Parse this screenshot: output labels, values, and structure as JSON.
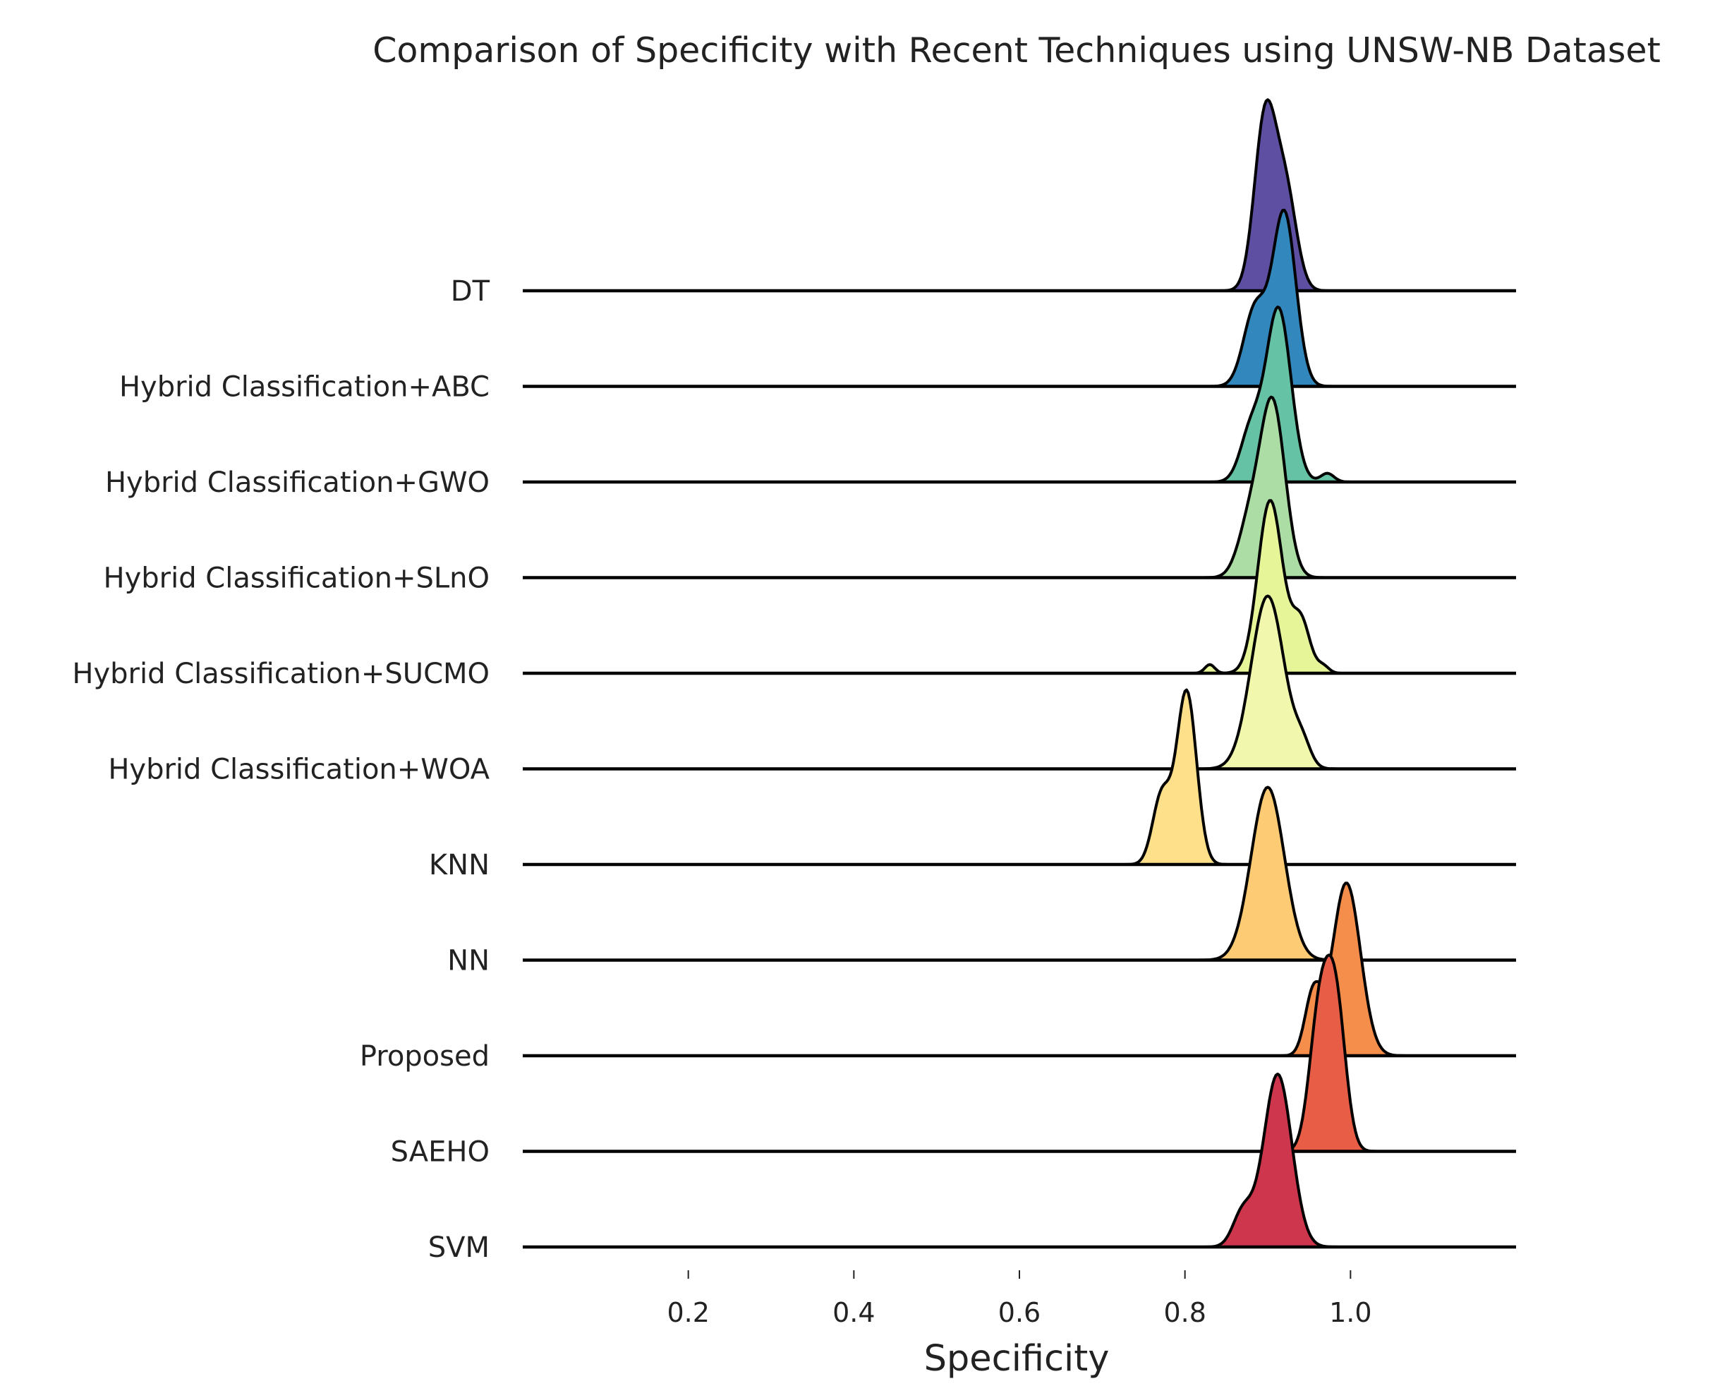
{
  "chart_data": {
    "type": "ridgeline",
    "title": "Comparison of Specificity with Recent Techniques using UNSW-NB Dataset",
    "xlabel": "Specificity",
    "ylabel": "",
    "xlim": [
      0.0,
      1.2
    ],
    "xticks": [
      0.2,
      0.4,
      0.6,
      0.8,
      1.0
    ],
    "xtick_labels": [
      "0.2",
      "0.4",
      "0.6",
      "0.8",
      "1.0"
    ],
    "grid": false,
    "series": [
      {
        "name": "DT",
        "color": "#5e4fa2",
        "peaks": [
          {
            "mean": 0.897,
            "sd": 0.013,
            "height": 1.0
          },
          {
            "mean": 0.922,
            "sd": 0.013,
            "height": 0.55
          }
        ]
      },
      {
        "name": "Hybrid Classification+ABC",
        "color": "#3288bd",
        "peaks": [
          {
            "mean": 0.92,
            "sd": 0.014,
            "height": 1.0
          },
          {
            "mean": 0.885,
            "sd": 0.014,
            "height": 0.45
          }
        ]
      },
      {
        "name": "Hybrid Classification+GWO",
        "color": "#66c2a5",
        "peaks": [
          {
            "mean": 0.913,
            "sd": 0.015,
            "height": 1.0
          },
          {
            "mean": 0.88,
            "sd": 0.013,
            "height": 0.3
          },
          {
            "mean": 0.972,
            "sd": 0.008,
            "height": 0.05
          }
        ]
      },
      {
        "name": "Hybrid Classification+SLnO",
        "color": "#abdda4",
        "peaks": [
          {
            "mean": 0.906,
            "sd": 0.015,
            "height": 1.0
          },
          {
            "mean": 0.878,
            "sd": 0.014,
            "height": 0.3
          }
        ]
      },
      {
        "name": "Hybrid Classification+SUCMO",
        "color": "#e6f598",
        "peaks": [
          {
            "mean": 0.903,
            "sd": 0.015,
            "height": 1.0
          },
          {
            "mean": 0.94,
            "sd": 0.011,
            "height": 0.3
          },
          {
            "mean": 0.83,
            "sd": 0.006,
            "height": 0.05
          },
          {
            "mean": 0.967,
            "sd": 0.007,
            "height": 0.04
          }
        ]
      },
      {
        "name": "Hybrid Classification+WOA",
        "color": "#f1f8ae",
        "peaks": [
          {
            "mean": 0.9,
            "sd": 0.02,
            "height": 1.0
          },
          {
            "mean": 0.942,
            "sd": 0.01,
            "height": 0.12
          }
        ]
      },
      {
        "name": "KNN",
        "color": "#fee08b",
        "peaks": [
          {
            "mean": 0.802,
            "sd": 0.012,
            "height": 1.0
          },
          {
            "mean": 0.772,
            "sd": 0.011,
            "height": 0.4
          }
        ]
      },
      {
        "name": "NN",
        "color": "#fdcb73",
        "peaks": [
          {
            "mean": 0.9,
            "sd": 0.02,
            "height": 1.0
          }
        ]
      },
      {
        "name": "Proposed",
        "color": "#f58d4b",
        "peaks": [
          {
            "mean": 0.995,
            "sd": 0.017,
            "height": 1.0
          },
          {
            "mean": 0.955,
            "sd": 0.01,
            "height": 0.35
          }
        ]
      },
      {
        "name": "SAEHO",
        "color": "#e85d46",
        "peaks": [
          {
            "mean": 0.982,
            "sd": 0.012,
            "height": 0.85
          },
          {
            "mean": 0.962,
            "sd": 0.012,
            "height": 0.75
          }
        ]
      },
      {
        "name": "SVM",
        "color": "#cd364d",
        "peaks": [
          {
            "mean": 0.912,
            "sd": 0.017,
            "height": 1.0
          },
          {
            "mean": 0.87,
            "sd": 0.012,
            "height": 0.2
          }
        ]
      }
    ]
  }
}
